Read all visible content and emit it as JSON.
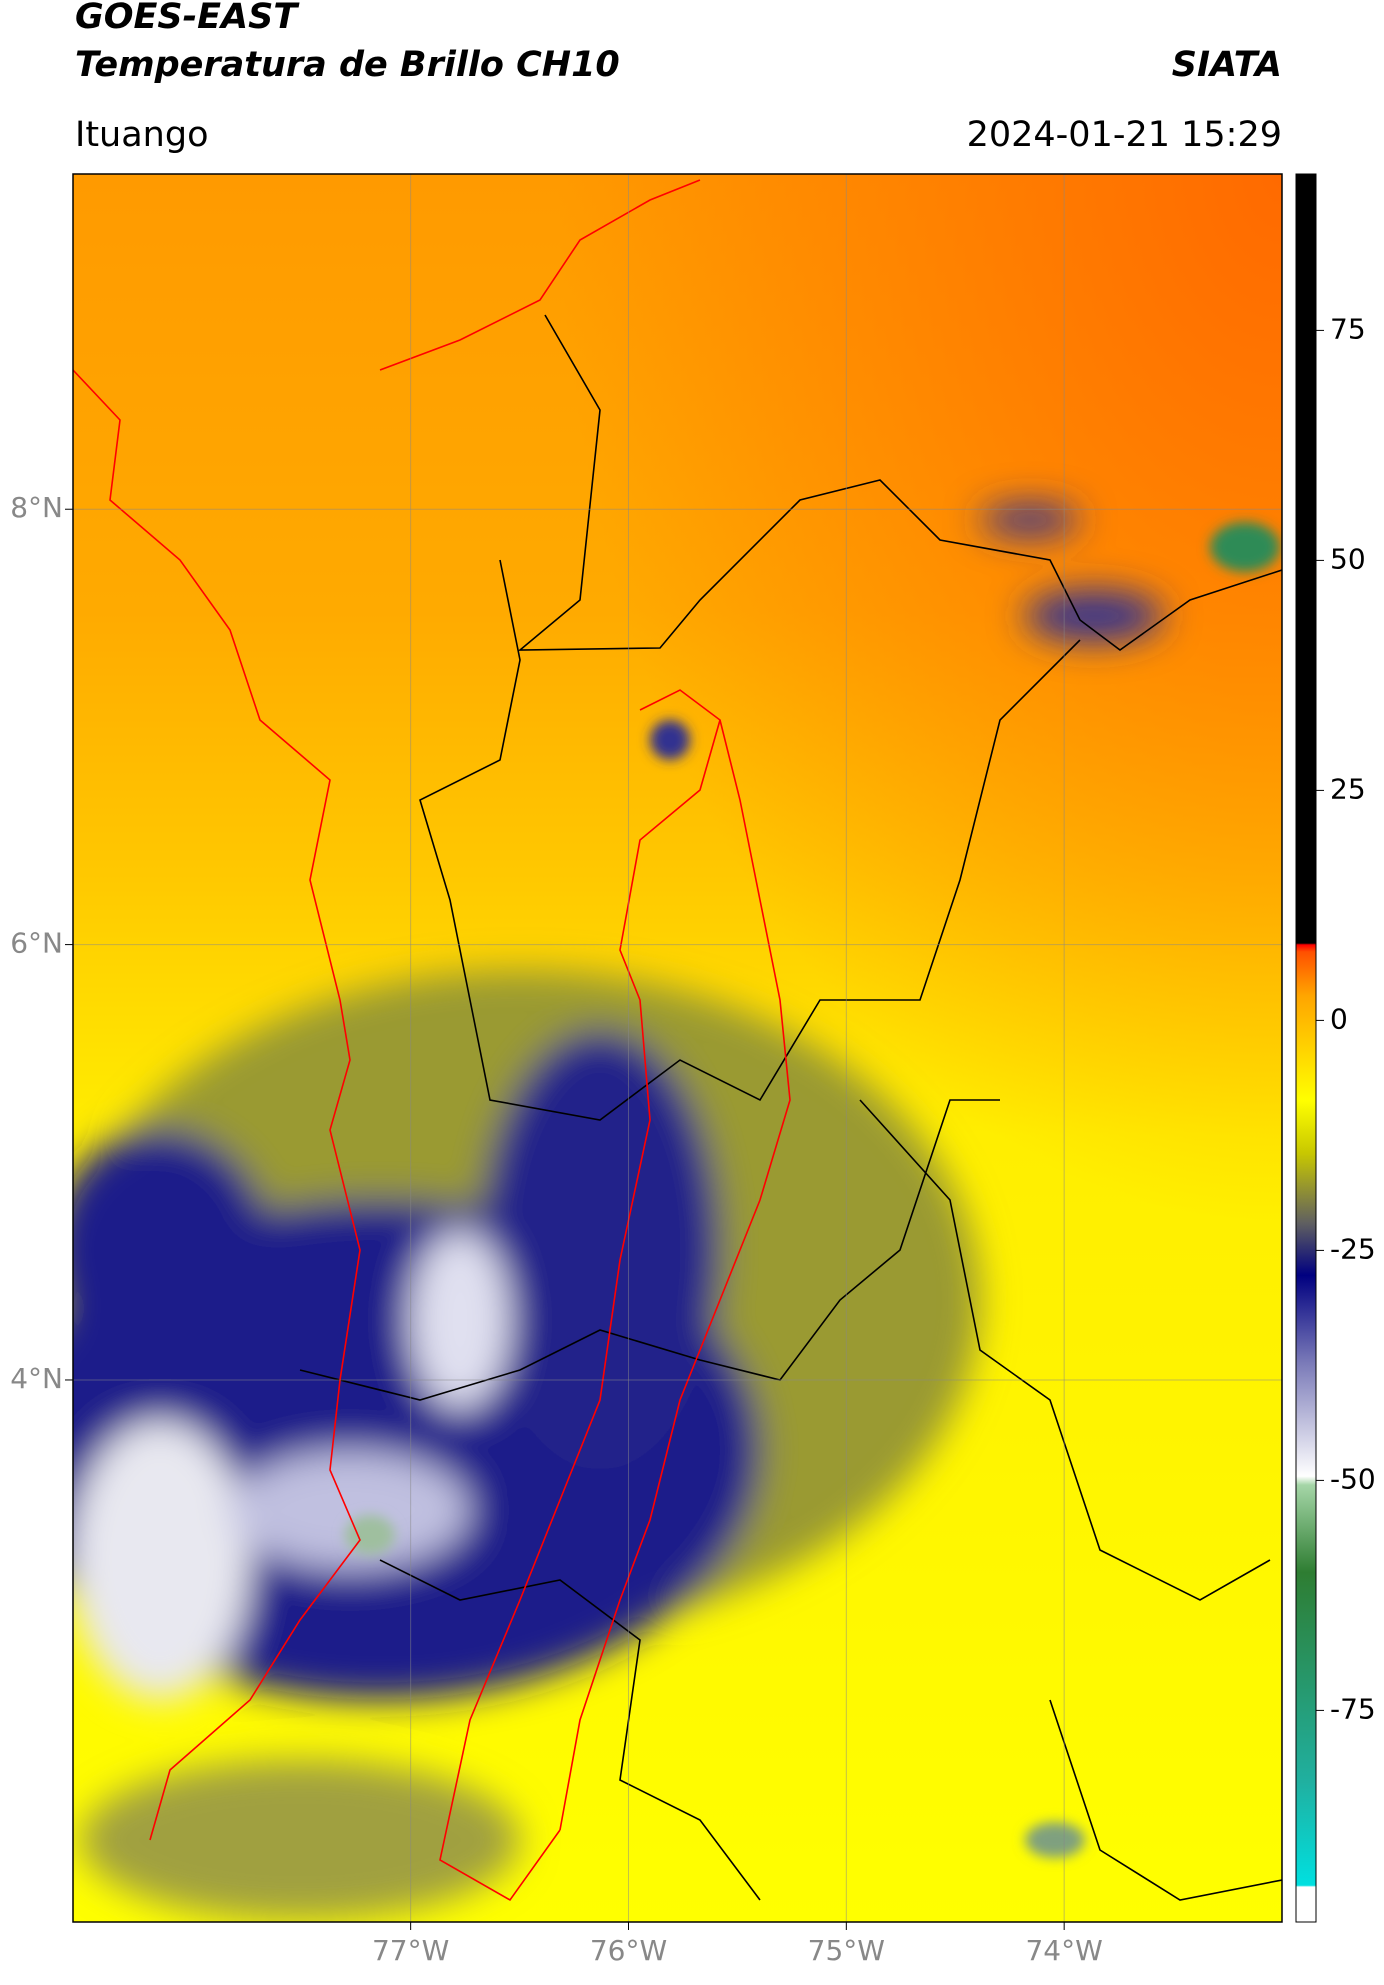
{
  "chart_data": {
    "type": "map",
    "title": "GOES-EAST",
    "subtitle": "Temperatura de Brillo CH10",
    "source": "SIATA",
    "location": "Ituango",
    "timestamp": "2024-01-21 15:29",
    "xlim": [
      -78.55,
      -73.0
    ],
    "ylim": [
      1.51,
      9.54
    ],
    "xticks": [
      {
        "value": -77,
        "label": "77°W"
      },
      {
        "value": -76,
        "label": "76°W"
      },
      {
        "value": -75,
        "label": "75°W"
      },
      {
        "value": -74,
        "label": "74°W"
      }
    ],
    "yticks": [
      {
        "value": 4,
        "label": "4°N"
      },
      {
        "value": 6,
        "label": "6°N"
      },
      {
        "value": 8,
        "label": "8°N"
      }
    ],
    "grid": true,
    "colorbar": {
      "lim": [
        -98,
        92
      ],
      "ticks": [
        -75,
        -50,
        -25,
        0,
        25,
        50,
        75
      ]
    }
  }
}
